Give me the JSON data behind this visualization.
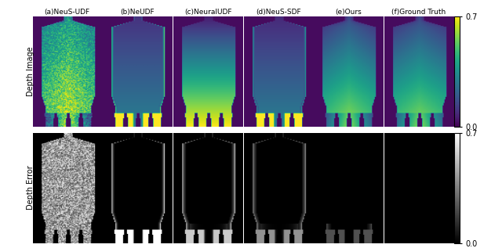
{
  "title_labels": [
    "(a)NeuS-UDF",
    "(b)NeUDF",
    "(c)NeuralUDF",
    "(d)NeuS-SDF",
    "(e)Ours",
    "(f)Ground Truth"
  ],
  "row_labels": [
    "Depth Image",
    "Depth Error"
  ],
  "colorbar1_ticks": [
    0.0,
    0.7
  ],
  "colorbar2_ticks": [
    0.0,
    0.7
  ],
  "colormap_top": "viridis",
  "colormap_bot": "gray",
  "figsize": [
    6.4,
    3.17
  ],
  "dpi": 100
}
